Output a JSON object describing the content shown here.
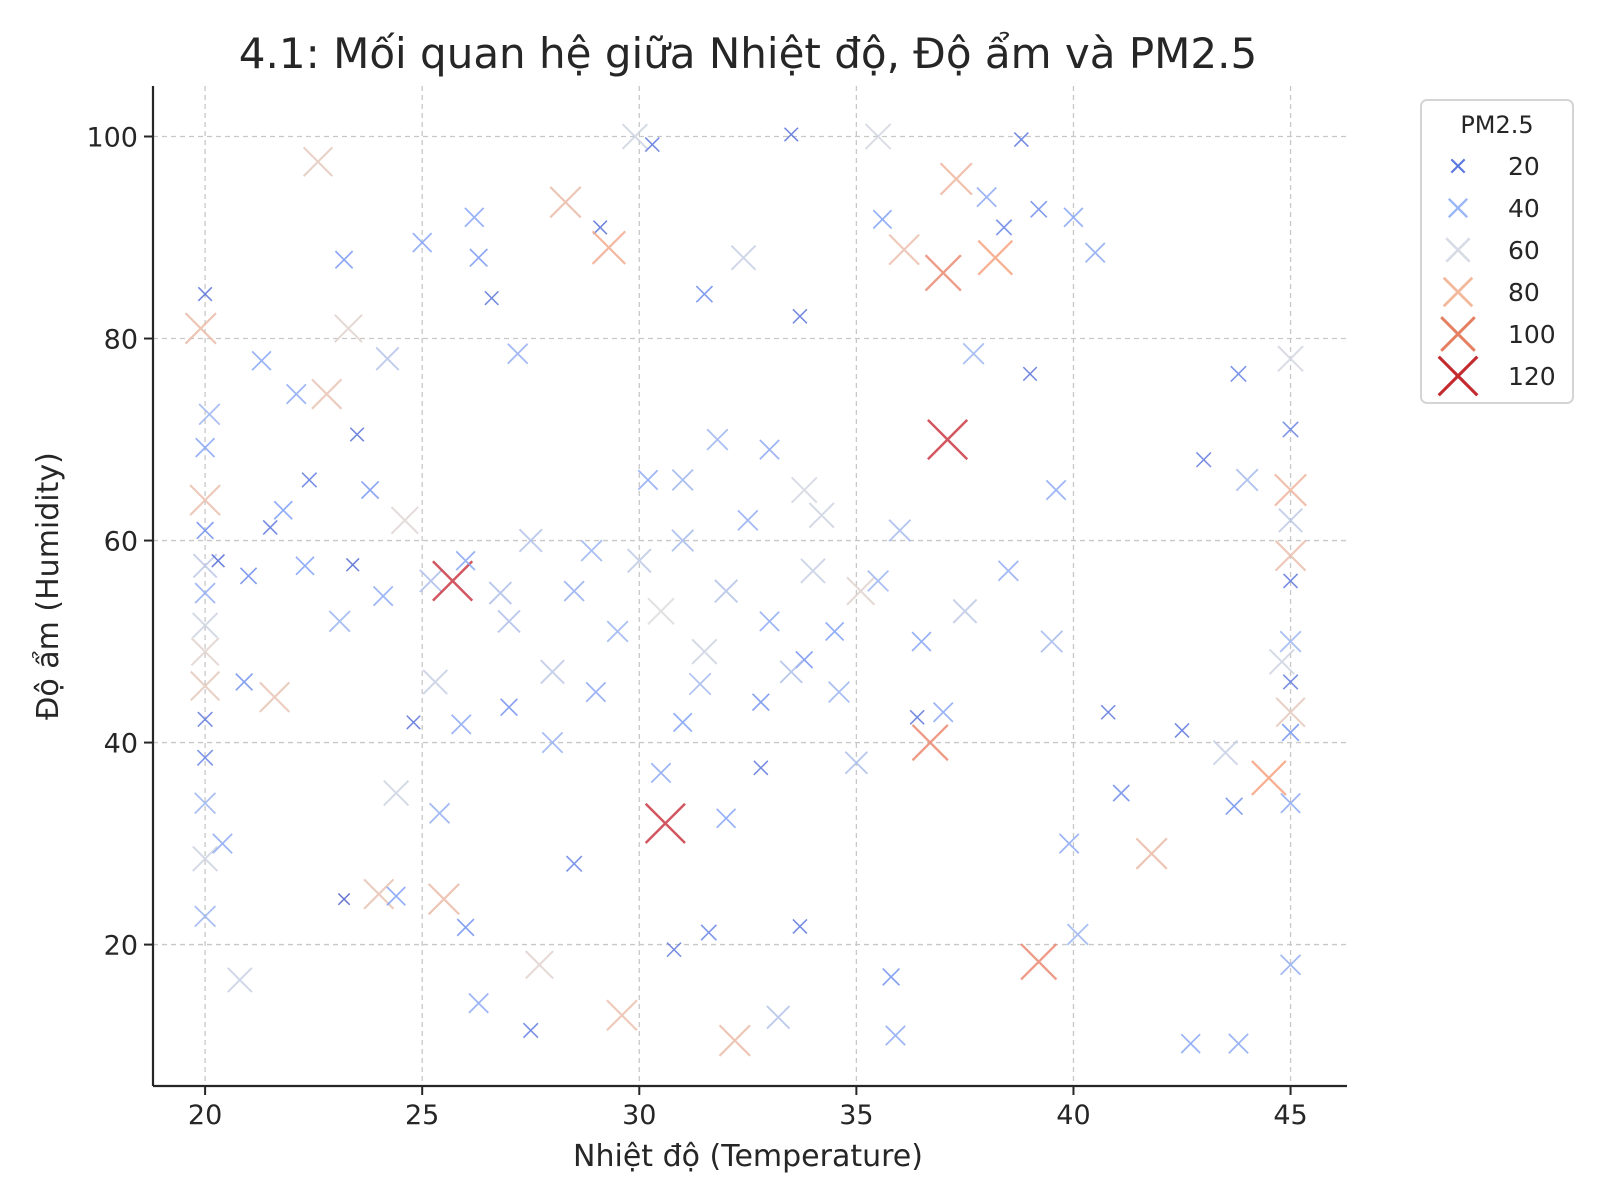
{
  "chart_data": {
    "type": "scatter",
    "title": "4.1: Mối quan hệ giữa Nhiệt độ, Độ ẩm và PM2.5",
    "xlabel": "Nhiệt độ (Temperature)",
    "ylabel": "Độ ẩm (Humidity)",
    "xlim": [
      18.8,
      46.3
    ],
    "ylim": [
      6,
      105
    ],
    "xticks": [
      20,
      25,
      30,
      35,
      40,
      45
    ],
    "yticks": [
      20,
      40,
      60,
      80,
      100
    ],
    "grid": true,
    "marker": "x",
    "colormap": "coolwarm",
    "color_range": [
      5,
      125
    ],
    "legend": {
      "title": "PM2.5",
      "placement": "outside-top-right",
      "entries": [
        {
          "label": "20",
          "value": 20,
          "color": "#5a78e0"
        },
        {
          "label": "40",
          "value": 40,
          "color": "#97b5f7"
        },
        {
          "label": "60",
          "value": 60,
          "color": "#d6dbe6"
        },
        {
          "label": "80",
          "value": 80,
          "color": "#f3b99c"
        },
        {
          "label": "100",
          "value": 100,
          "color": "#e57f62"
        },
        {
          "label": "120",
          "value": 120,
          "color": "#c42b2f"
        }
      ]
    },
    "series": [
      {
        "columns": [
          "temperature",
          "humidity",
          "pm25"
        ],
        "points": [
          [
            20.0,
            84.4,
            18
          ],
          [
            20.0,
            69.2,
            38
          ],
          [
            20.0,
            64.0,
            80
          ],
          [
            20.0,
            61.0,
            30
          ],
          [
            20.0,
            57.5,
            55
          ],
          [
            20.0,
            54.8,
            42
          ],
          [
            20.0,
            51.6,
            60
          ],
          [
            20.0,
            49.0,
            70
          ],
          [
            20.0,
            45.6,
            75
          ],
          [
            20.0,
            42.3,
            22
          ],
          [
            20.0,
            38.5,
            25
          ],
          [
            20.0,
            34.0,
            45
          ],
          [
            20.0,
            28.5,
            60
          ],
          [
            20.0,
            22.8,
            45
          ],
          [
            19.9,
            81.0,
            82
          ],
          [
            20.1,
            72.5,
            45
          ],
          [
            20.3,
            58.0,
            15
          ],
          [
            20.4,
            30.0,
            40
          ],
          [
            20.8,
            16.5,
            58
          ],
          [
            20.9,
            46.0,
            30
          ],
          [
            21.0,
            56.5,
            28
          ],
          [
            21.3,
            77.8,
            38
          ],
          [
            21.5,
            61.3,
            20
          ],
          [
            21.6,
            44.5,
            78
          ],
          [
            21.8,
            63.0,
            35
          ],
          [
            22.1,
            74.5,
            40
          ],
          [
            22.3,
            57.5,
            35
          ],
          [
            22.4,
            66.0,
            22
          ],
          [
            22.6,
            97.5,
            75
          ],
          [
            22.8,
            74.5,
            78
          ],
          [
            23.1,
            52.0,
            45
          ],
          [
            23.2,
            87.8,
            32
          ],
          [
            23.2,
            24.5,
            10
          ],
          [
            23.3,
            81.0,
            70
          ],
          [
            23.4,
            57.6,
            15
          ],
          [
            23.5,
            70.5,
            18
          ],
          [
            23.8,
            65.0,
            32
          ],
          [
            24.0,
            25.0,
            78
          ],
          [
            24.1,
            54.5,
            40
          ],
          [
            24.2,
            78.0,
            52
          ],
          [
            24.4,
            24.8,
            36
          ],
          [
            24.4,
            35.0,
            60
          ],
          [
            24.6,
            62.0,
            68
          ],
          [
            24.8,
            42.0,
            18
          ],
          [
            25.0,
            89.5,
            38
          ],
          [
            25.2,
            56.0,
            50
          ],
          [
            25.3,
            46.0,
            58
          ],
          [
            25.4,
            33.0,
            42
          ],
          [
            25.5,
            24.5,
            82
          ],
          [
            25.7,
            56.0,
            115
          ],
          [
            25.9,
            41.8,
            40
          ],
          [
            26.0,
            21.7,
            30
          ],
          [
            26.2,
            92.0,
            38
          ],
          [
            26.3,
            88.0,
            33
          ],
          [
            26.3,
            14.2,
            40
          ],
          [
            26.6,
            84.0,
            18
          ],
          [
            26.8,
            54.8,
            50
          ],
          [
            27.0,
            43.5,
            30
          ],
          [
            27.2,
            78.5,
            42
          ],
          [
            27.5,
            11.5,
            22
          ],
          [
            27.7,
            18.0,
            70
          ],
          [
            28.0,
            47.0,
            55
          ],
          [
            28.3,
            93.5,
            82
          ],
          [
            28.5,
            28.0,
            25
          ],
          [
            28.9,
            59.0,
            45
          ],
          [
            29.1,
            91.0,
            18
          ],
          [
            29.3,
            89.0,
            90
          ],
          [
            29.6,
            13.0,
            80
          ],
          [
            29.9,
            100.0,
            60
          ],
          [
            30.3,
            99.2,
            20
          ],
          [
            30.5,
            37.0,
            40
          ],
          [
            30.6,
            32.0,
            115
          ],
          [
            30.8,
            19.5,
            20
          ],
          [
            31.0,
            66.0,
            45
          ],
          [
            31.4,
            45.8,
            48
          ],
          [
            31.5,
            84.4,
            28
          ],
          [
            31.6,
            21.2,
            25
          ],
          [
            32.0,
            32.5,
            38
          ],
          [
            32.2,
            10.5,
            82
          ],
          [
            32.4,
            88.0,
            58
          ],
          [
            32.8,
            37.5,
            20
          ],
          [
            33.0,
            69.0,
            40
          ],
          [
            33.2,
            12.8,
            52
          ],
          [
            33.5,
            100.2,
            18
          ],
          [
            33.7,
            82.2,
            20
          ],
          [
            33.7,
            21.8,
            20
          ],
          [
            33.8,
            48.2,
            30
          ],
          [
            34.2,
            62.5,
            60
          ],
          [
            34.6,
            45.0,
            45
          ],
          [
            35.1,
            55.0,
            70
          ],
          [
            35.5,
            100.0,
            62
          ],
          [
            35.6,
            91.8,
            36
          ],
          [
            35.8,
            16.8,
            30
          ],
          [
            35.9,
            11.0,
            40
          ],
          [
            36.1,
            88.8,
            80
          ],
          [
            36.4,
            42.5,
            20
          ],
          [
            36.7,
            40.0,
            100
          ],
          [
            37.0,
            86.5,
            100
          ],
          [
            37.1,
            70.0,
            115
          ],
          [
            37.3,
            95.8,
            85
          ],
          [
            37.7,
            78.5,
            45
          ],
          [
            38.0,
            94.0,
            40
          ],
          [
            38.2,
            88.0,
            95
          ],
          [
            38.4,
            91.0,
            25
          ],
          [
            38.8,
            99.7,
            20
          ],
          [
            39.0,
            76.5,
            18
          ],
          [
            39.2,
            92.8,
            28
          ],
          [
            39.2,
            18.3,
            100
          ],
          [
            39.6,
            65.0,
            40
          ],
          [
            39.9,
            30.0,
            40
          ],
          [
            40.0,
            92.0,
            38
          ],
          [
            40.1,
            21.0,
            45
          ],
          [
            40.5,
            88.5,
            40
          ],
          [
            40.8,
            43.0,
            20
          ],
          [
            41.1,
            35.0,
            28
          ],
          [
            41.8,
            29.0,
            82
          ],
          [
            42.5,
            41.2,
            20
          ],
          [
            42.7,
            10.2,
            38
          ],
          [
            43.0,
            68.0,
            22
          ],
          [
            43.5,
            39.0,
            58
          ],
          [
            43.7,
            33.7,
            30
          ],
          [
            43.8,
            10.2,
            40
          ],
          [
            43.8,
            76.5,
            25
          ],
          [
            44.0,
            66.0,
            48
          ],
          [
            44.5,
            36.5,
            95
          ],
          [
            44.8,
            48.0,
            60
          ],
          [
            45.0,
            71.0,
            25
          ],
          [
            45.0,
            65.0,
            85
          ],
          [
            45.0,
            62.0,
            55
          ],
          [
            45.0,
            56.0,
            20
          ],
          [
            45.0,
            50.0,
            45
          ],
          [
            45.0,
            46.0,
            22
          ],
          [
            45.0,
            43.0,
            75
          ],
          [
            45.0,
            41.0,
            30
          ],
          [
            45.0,
            34.0,
            40
          ],
          [
            45.0,
            18.0,
            42
          ],
          [
            45.0,
            78.0,
            62
          ],
          [
            45.0,
            58.5,
            80
          ],
          [
            30.0,
            58.0,
            55
          ],
          [
            31.0,
            60.0,
            48
          ],
          [
            32.0,
            55.0,
            52
          ],
          [
            33.0,
            52.0,
            40
          ],
          [
            34.0,
            57.0,
            58
          ],
          [
            29.5,
            51.0,
            45
          ],
          [
            31.5,
            49.0,
            60
          ],
          [
            32.5,
            62.0,
            42
          ],
          [
            33.5,
            47.0,
            50
          ],
          [
            34.5,
            51.0,
            35
          ],
          [
            30.5,
            53.0,
            65
          ],
          [
            35.5,
            56.0,
            45
          ],
          [
            36.5,
            50.0,
            38
          ],
          [
            28.5,
            55.0,
            42
          ],
          [
            27.5,
            60.0,
            52
          ],
          [
            36.0,
            61.0,
            48
          ],
          [
            37.5,
            53.0,
            55
          ],
          [
            29.0,
            45.0,
            40
          ],
          [
            32.8,
            44.0,
            30
          ],
          [
            33.8,
            65.0,
            62
          ],
          [
            30.2,
            66.0,
            40
          ],
          [
            31.8,
            70.0,
            45
          ],
          [
            27.0,
            52.0,
            50
          ],
          [
            26.0,
            58.0,
            38
          ],
          [
            38.5,
            57.0,
            42
          ],
          [
            39.5,
            50.0,
            48
          ],
          [
            28.0,
            40.0,
            44
          ],
          [
            37.0,
            43.0,
            40
          ],
          [
            35.0,
            38.0,
            50
          ],
          [
            31.0,
            42.0,
            36
          ]
        ]
      }
    ]
  }
}
